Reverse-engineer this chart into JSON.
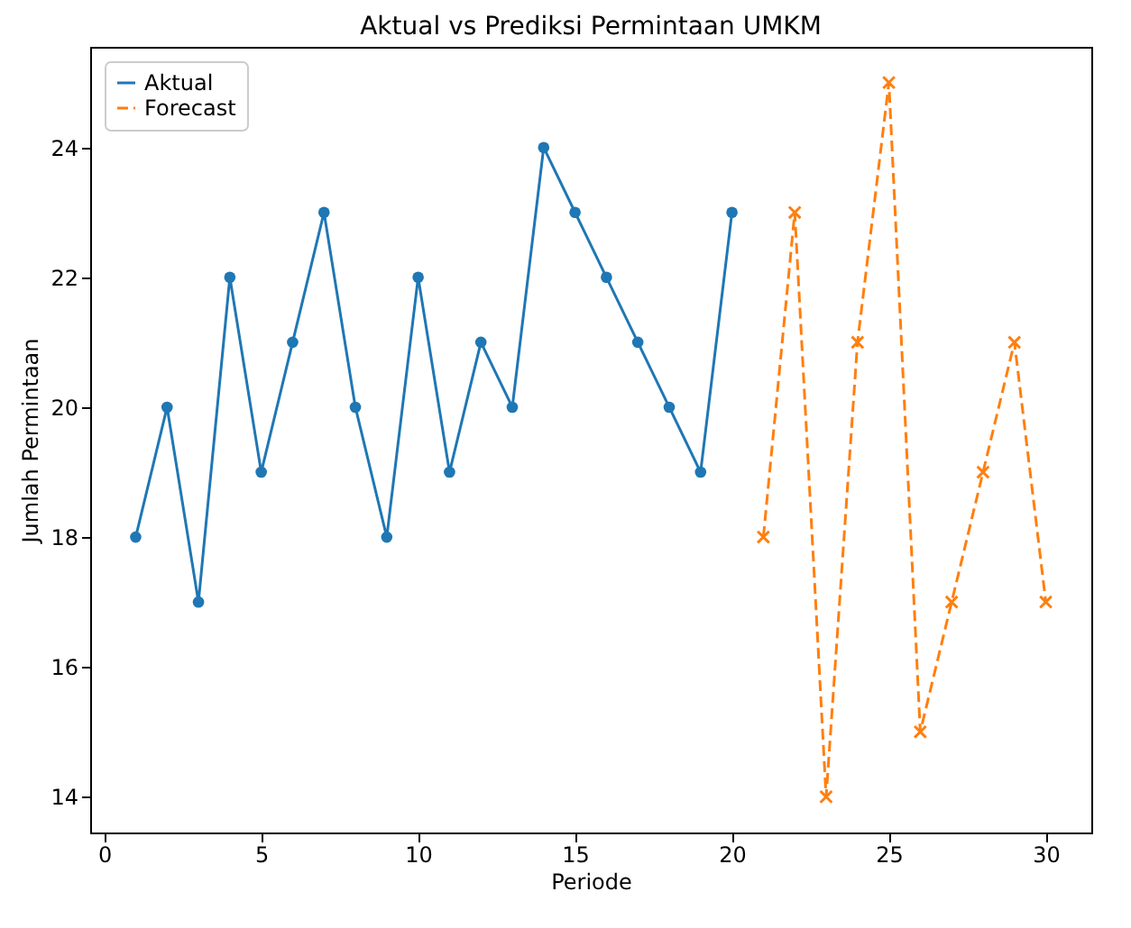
{
  "chart_data": {
    "type": "line",
    "title": "Aktual vs Prediksi Permintaan UMKM",
    "xlabel": "Periode",
    "ylabel": "Jumlah Permintaan",
    "series": [
      {
        "name": "Aktual",
        "color": "#1f77b4",
        "marker": "circle",
        "line_style": "solid",
        "x": [
          1,
          2,
          3,
          4,
          5,
          6,
          7,
          8,
          9,
          10,
          11,
          12,
          13,
          14,
          15,
          16,
          17,
          18,
          19,
          20
        ],
        "values": [
          18,
          20,
          17,
          22,
          19,
          21,
          23,
          20,
          18,
          22,
          19,
          21,
          20,
          24,
          23,
          22,
          21,
          20,
          19,
          23
        ]
      },
      {
        "name": "Forecast",
        "color": "#ff7f0e",
        "marker": "cross",
        "line_style": "dashed",
        "x": [
          21,
          22,
          23,
          24,
          25,
          26,
          27,
          28,
          29,
          30
        ],
        "values": [
          18,
          23,
          14,
          21,
          25,
          15,
          17,
          19,
          21,
          17
        ]
      }
    ],
    "xlim": [
      -0.45,
      31.45
    ],
    "xticks": [
      0,
      5,
      10,
      15,
      20,
      25,
      30
    ],
    "ylim": [
      13.45,
      25.55
    ],
    "yticks": [
      14,
      16,
      18,
      20,
      22,
      24
    ],
    "legend": "top left",
    "grid": false
  }
}
